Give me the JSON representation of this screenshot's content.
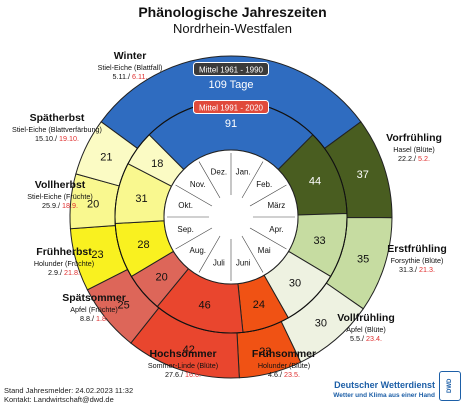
{
  "title": "Phänologische Jahreszeiten",
  "subtitle": "Nordrhein-Westfalen",
  "chart_data": {
    "type": "pie",
    "rings": [
      {
        "name": "Mittel 1961 - 1990",
        "total_label": "109 Tage",
        "values": [
          109,
          37,
          35,
          30,
          23,
          42,
          25,
          23,
          20,
          21
        ]
      },
      {
        "name": "Mittel 1991 - 2020",
        "total_label": "91",
        "values": [
          91,
          44,
          33,
          30,
          24,
          46,
          20,
          28,
          31,
          18
        ]
      }
    ],
    "months": [
      "Jan.",
      "Feb.",
      "März",
      "Apr.",
      "Mai",
      "Juni",
      "Juli",
      "Aug.",
      "Sep.",
      "Okt.",
      "Nov.",
      "Dez."
    ],
    "colors": [
      "#2f6cc0",
      "#495d20",
      "#c6dca1",
      "#eef2e1",
      "#f05214",
      "#e9462e",
      "#dd6659",
      "#f9f120",
      "#f9f88f",
      "#fbfbc4"
    ]
  },
  "seasons": [
    {
      "name": "Winter",
      "phase": "Stiel-Eiche (Blattfall)",
      "date_old": "5.11./",
      "date_new": "6.11."
    },
    {
      "name": "Vorfrühling",
      "phase": "Hasel (Blüte)",
      "date_old": "22.2./",
      "date_new": "5.2."
    },
    {
      "name": "Erstfrühling",
      "phase": "Forsythie (Blüte)",
      "date_old": "31.3./",
      "date_new": "21.3."
    },
    {
      "name": "Vollfrühling",
      "phase": "Apfel (Blüte)",
      "date_old": "5.5./",
      "date_new": "23.4."
    },
    {
      "name": "Frühsommer",
      "phase": "Holunder (Blüte)",
      "date_old": "4.6./",
      "date_new": "23.5."
    },
    {
      "name": "Hochsommer",
      "phase": "Sommer-Linde (Blüte)",
      "date_old": "27.6./",
      "date_new": "16.6."
    },
    {
      "name": "Spätsommer",
      "phase": "Apfel (Früchte)",
      "date_old": "8.8./",
      "date_new": "1.8."
    },
    {
      "name": "Frühherbst",
      "phase": "Holunder (Früchte)",
      "date_old": "2.9./",
      "date_new": "21.8."
    },
    {
      "name": "Vollherbst",
      "phase": "Stiel-Eiche (Früchte)",
      "date_old": "25.9./",
      "date_new": "18.9."
    },
    {
      "name": "Spätherbst",
      "phase": "Stiel-Eiche (Blattverfärbung)",
      "date_old": "15.10./",
      "date_new": "19.10."
    }
  ],
  "footer": {
    "stand": "Stand Jahresmelder: 24.02.2023 11:32",
    "kontakt": "Kontakt: Landwirtschaft@dwd.de"
  },
  "brand": {
    "name": "Deutscher Wetterdienst",
    "slogan": "Wetter und Klima aus einer Hand",
    "logo": "DWD"
  }
}
